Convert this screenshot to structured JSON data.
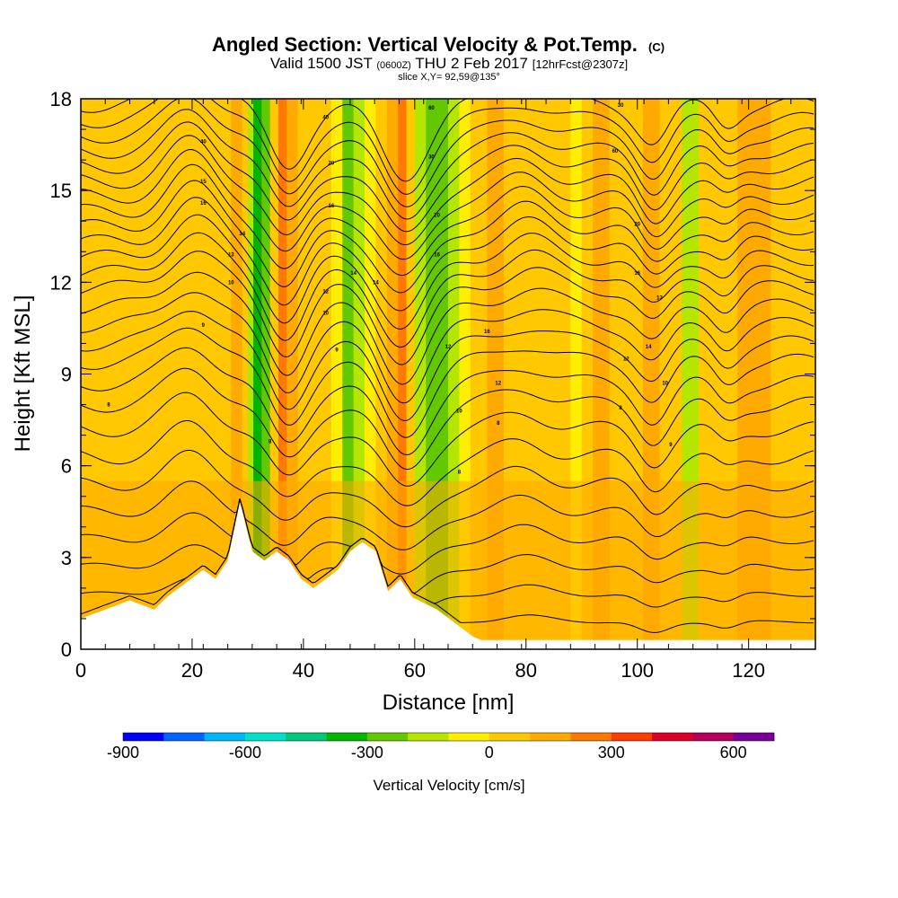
{
  "title": {
    "main": "Angled Section: Vertical Velocity & Pot.Temp.",
    "units": "(C)",
    "valid_prefix": "Valid 1500 JST",
    "valid_z": "(0600Z)",
    "valid_date": "THU 2 Feb 2017",
    "forecast": "[12hrFcst@2307z]",
    "slice": "slice X,Y= 92,59@135°"
  },
  "colorbar": {
    "title": "Vertical Velocity [cm/s]",
    "colors": [
      "#0000ff",
      "#0064ff",
      "#00b4ff",
      "#00e1c8",
      "#00c878",
      "#00b400",
      "#64c800",
      "#b4e600",
      "#ffee00",
      "#ffc800",
      "#ffaa00",
      "#ff7800",
      "#ff3c00",
      "#dc0028",
      "#b4005a",
      "#780096"
    ],
    "bounds": [
      -900,
      -800,
      -700,
      -600,
      -500,
      -400,
      -300,
      -200,
      -100,
      0,
      100,
      200,
      300,
      400,
      500,
      600,
      700
    ],
    "tick_values": [
      -900,
      -600,
      -300,
      0,
      300,
      600
    ],
    "tick_labels": [
      "-900",
      "-600",
      "-300",
      "0",
      "300",
      "600"
    ]
  },
  "chart_data": {
    "type": "heatmap",
    "title": "Angled Section: Vertical Velocity & Pot.Temp.",
    "xlabel": "Distance [nm]",
    "ylabel": "Height [Kft MSL]",
    "xlim": [
      0,
      132
    ],
    "ylim": [
      0,
      18
    ],
    "x_ticks": [
      0,
      20,
      40,
      60,
      80,
      100,
      120
    ],
    "x_tick_labels": [
      "0",
      "20",
      "40",
      "60",
      "80",
      "100",
      "120"
    ],
    "y_ticks": [
      0,
      3,
      6,
      9,
      12,
      15,
      18
    ],
    "y_tick_labels": [
      "0",
      "3",
      "6",
      "9",
      "12",
      "15",
      "18"
    ],
    "x_minor_step": 4.4,
    "terrain": {
      "x": [
        0,
        4.4,
        8.8,
        13.2,
        15.4,
        17.6,
        19.8,
        22,
        24.2,
        26.4,
        28.6,
        30.8,
        33,
        35.2,
        37.4,
        39.6,
        41.8,
        44,
        46.2,
        48.4,
        50.6,
        53,
        55.2,
        57.4,
        59.6,
        61.8,
        64,
        66.2,
        68.4,
        70.6,
        72,
        132
      ],
      "height": [
        1.0,
        1.3,
        1.6,
        1.3,
        1.7,
        2.0,
        2.3,
        2.6,
        2.3,
        2.9,
        4.8,
        3.2,
        2.9,
        3.2,
        2.9,
        2.3,
        2.0,
        2.3,
        2.6,
        3.2,
        3.5,
        3.2,
        1.9,
        2.3,
        1.7,
        1.5,
        1.3,
        1.0,
        0.7,
        0.4,
        0.3,
        0.3
      ]
    },
    "vertical_velocity_bands": [
      {
        "x": 0,
        "vv": 60
      },
      {
        "x": 3,
        "vv": 30
      },
      {
        "x": 7,
        "vv": 40
      },
      {
        "x": 12,
        "vv": 20
      },
      {
        "x": 15,
        "vv": 60
      },
      {
        "x": 18,
        "vv": 80
      },
      {
        "x": 20,
        "vv": 60
      },
      {
        "x": 22.5,
        "vv": 10
      },
      {
        "x": 25,
        "vv": 40
      },
      {
        "x": 27,
        "vv": 160
      },
      {
        "x": 29,
        "vv": 30
      },
      {
        "x": 30,
        "vv": -180
      },
      {
        "x": 31,
        "vv": -330
      },
      {
        "x": 32.5,
        "vv": -250
      },
      {
        "x": 34,
        "vv": 80
      },
      {
        "x": 35.5,
        "vv": 220
      },
      {
        "x": 37,
        "vv": 170
      },
      {
        "x": 39,
        "vv": 90
      },
      {
        "x": 41,
        "vv": 40
      },
      {
        "x": 43,
        "vv": 30
      },
      {
        "x": 45,
        "vv": -90
      },
      {
        "x": 47,
        "vv": -210
      },
      {
        "x": 49,
        "vv": -160
      },
      {
        "x": 51,
        "vv": -60
      },
      {
        "x": 53,
        "vv": 40
      },
      {
        "x": 55,
        "vv": 110
      },
      {
        "x": 57,
        "vv": 230
      },
      {
        "x": 58.5,
        "vv": 60
      },
      {
        "x": 60,
        "vv": -120
      },
      {
        "x": 62,
        "vv": -270
      },
      {
        "x": 64,
        "vv": -220
      },
      {
        "x": 66,
        "vv": -130
      },
      {
        "x": 68,
        "vv": -40
      },
      {
        "x": 70,
        "vv": 30
      },
      {
        "x": 73,
        "vv": 130
      },
      {
        "x": 76,
        "vv": 60
      },
      {
        "x": 79,
        "vv": 10
      },
      {
        "x": 82,
        "vv": 90
      },
      {
        "x": 85,
        "vv": 40
      },
      {
        "x": 88,
        "vv": -70
      },
      {
        "x": 90,
        "vv": 60
      },
      {
        "x": 92,
        "vv": 110
      },
      {
        "x": 95,
        "vv": 20
      },
      {
        "x": 98,
        "vv": 80
      },
      {
        "x": 101,
        "vv": 150
      },
      {
        "x": 104,
        "vv": 60
      },
      {
        "x": 106,
        "vv": 10
      },
      {
        "x": 108,
        "vv": -110
      },
      {
        "x": 111,
        "vv": 10
      },
      {
        "x": 114,
        "vv": 90
      },
      {
        "x": 116,
        "vv": 20
      },
      {
        "x": 118,
        "vv": 110
      },
      {
        "x": 121,
        "vv": 150
      },
      {
        "x": 124,
        "vv": 60
      },
      {
        "x": 127,
        "vv": 10
      },
      {
        "x": 130,
        "vv": 70
      },
      {
        "x": 132,
        "vv": 40
      }
    ],
    "low_level_update_zone": {
      "x_range": [
        0,
        132
      ],
      "height_below": 5.5,
      "vv": 120
    },
    "potential_temperature_contours": {
      "base_heights": [
        0.9,
        1.8,
        2.7,
        3.6,
        4.5,
        5.4,
        6.3,
        7.2,
        8.0,
        8.7,
        9.4,
        10.0,
        10.6,
        11.2,
        11.8,
        12.3,
        12.8,
        13.3,
        13.8,
        14.3,
        14.8,
        15.3,
        15.8,
        16.3,
        16.8,
        17.3,
        17.8
      ],
      "waves": [
        {
          "x": 20,
          "amp": 1.3,
          "width": 6
        },
        {
          "x": 37,
          "amp": -2.0,
          "width": 5
        },
        {
          "x": 58,
          "amp": -2.3,
          "width": 6
        },
        {
          "x": 80,
          "amp": 0.6,
          "width": 6
        },
        {
          "x": 103,
          "amp": -1.2,
          "width": 4
        },
        {
          "x": 116,
          "amp": -0.6,
          "width": 3
        }
      ],
      "labels": [
        {
          "text": "8",
          "x": 5,
          "y": 8.0
        },
        {
          "text": "9",
          "x": 22,
          "y": 10.6
        },
        {
          "text": "10",
          "x": 27,
          "y": 12.0
        },
        {
          "text": "13",
          "x": 27,
          "y": 12.9
        },
        {
          "text": "14",
          "x": 29,
          "y": 13.6
        },
        {
          "text": "16",
          "x": 22,
          "y": 14.6
        },
        {
          "text": "15",
          "x": 22,
          "y": 15.3
        },
        {
          "text": "40",
          "x": 22,
          "y": 16.6
        },
        {
          "text": "8",
          "x": 34,
          "y": 6.8
        },
        {
          "text": "9",
          "x": 46,
          "y": 9.8
        },
        {
          "text": "10",
          "x": 44,
          "y": 11.0
        },
        {
          "text": "12",
          "x": 44,
          "y": 11.7
        },
        {
          "text": "14",
          "x": 49,
          "y": 12.3
        },
        {
          "text": "14",
          "x": 53,
          "y": 12.0
        },
        {
          "text": "16",
          "x": 45,
          "y": 14.5
        },
        {
          "text": "20",
          "x": 45,
          "y": 15.9
        },
        {
          "text": "40",
          "x": 44,
          "y": 17.4
        },
        {
          "text": "60",
          "x": 63,
          "y": 17.7
        },
        {
          "text": "30",
          "x": 63,
          "y": 16.1
        },
        {
          "text": "20",
          "x": 64,
          "y": 14.2
        },
        {
          "text": "16",
          "x": 64,
          "y": 12.9
        },
        {
          "text": "12",
          "x": 66,
          "y": 9.9
        },
        {
          "text": "8",
          "x": 68,
          "y": 5.8
        },
        {
          "text": "10",
          "x": 68,
          "y": 7.8
        },
        {
          "text": "16",
          "x": 73,
          "y": 10.4
        },
        {
          "text": "12",
          "x": 75,
          "y": 8.7
        },
        {
          "text": "8",
          "x": 75,
          "y": 7.4
        },
        {
          "text": "30",
          "x": 97,
          "y": 17.8
        },
        {
          "text": "60",
          "x": 96,
          "y": 16.3
        },
        {
          "text": "20",
          "x": 100,
          "y": 13.9
        },
        {
          "text": "16",
          "x": 100,
          "y": 12.3
        },
        {
          "text": "13",
          "x": 104,
          "y": 11.5
        },
        {
          "text": "14",
          "x": 102,
          "y": 9.9
        },
        {
          "text": "12",
          "x": 98,
          "y": 9.5
        },
        {
          "text": "10",
          "x": 105,
          "y": 8.7
        },
        {
          "text": "8",
          "x": 97,
          "y": 7.9
        },
        {
          "text": "9",
          "x": 106,
          "y": 6.7
        }
      ]
    }
  }
}
